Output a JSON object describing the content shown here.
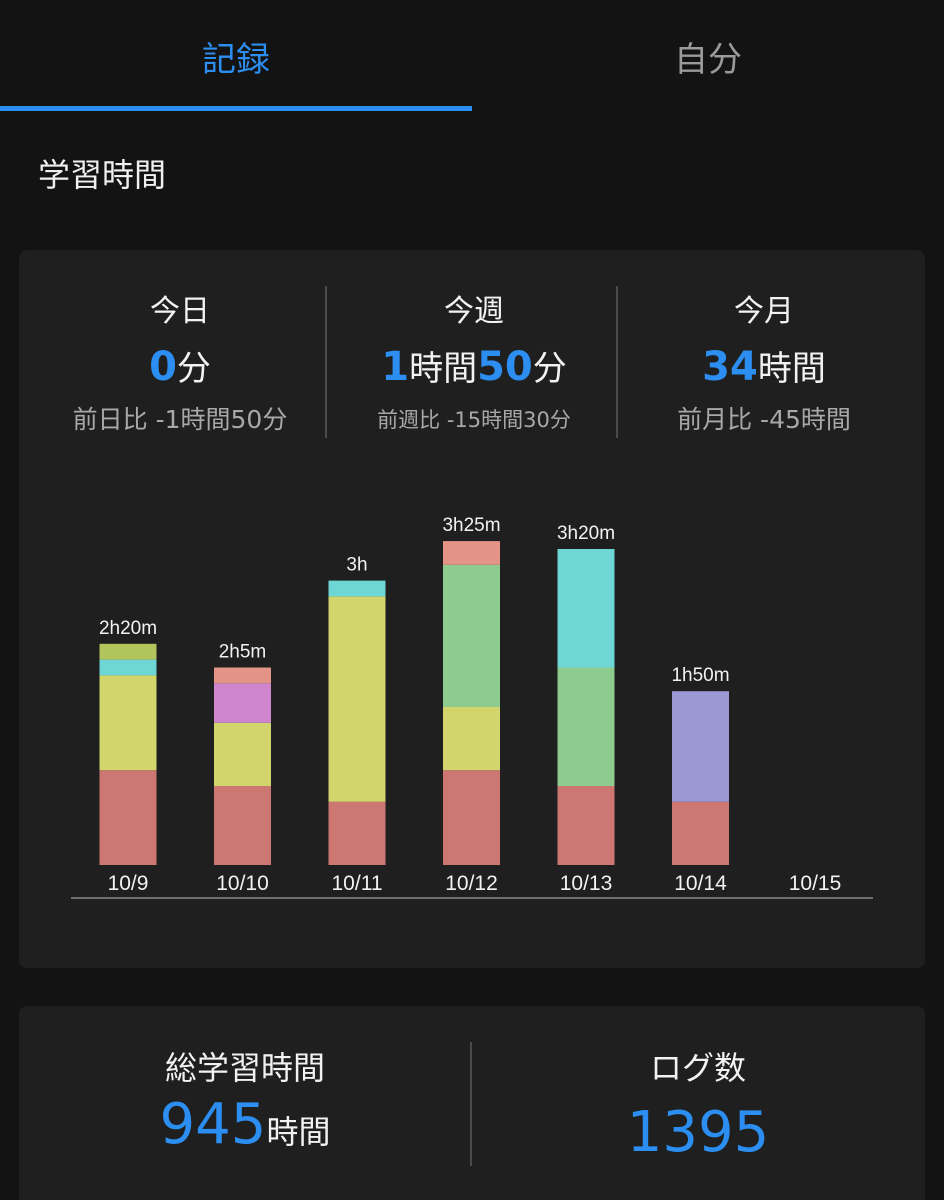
{
  "tabs": [
    {
      "label": "記録",
      "active": true
    },
    {
      "label": "自分",
      "active": false
    }
  ],
  "section_title": "学習時間",
  "stats": {
    "today": {
      "label": "今日",
      "value_parts": [
        "0",
        "分"
      ],
      "comparison": "前日比 -1時間50分"
    },
    "week": {
      "label": "今週",
      "value_parts": [
        "1",
        "時間",
        "50",
        "分"
      ],
      "comparison": "前週比 -15時間30分"
    },
    "month": {
      "label": "今月",
      "value_parts": [
        "34",
        "時間"
      ],
      "comparison": "前月比 -45時間"
    }
  },
  "colors": {
    "accent": "#2b8ef0",
    "red": "#cd7773",
    "yellow": "#d2d46c",
    "cyan": "#6fd6d6",
    "olive": "#b2c45c",
    "salmon": "#e39487",
    "purple": "#cf86cf",
    "green": "#8ecb8e",
    "lavender": "#9c98d6"
  },
  "chart_data": {
    "type": "bar",
    "stacked": true,
    "categories": [
      "10/9",
      "10/10",
      "10/11",
      "10/12",
      "10/13",
      "10/14",
      "10/15"
    ],
    "totals_label": [
      "2h20m",
      "2h5m",
      "3h",
      "3h25m",
      "3h20m",
      "1h50m",
      ""
    ],
    "stacks": [
      [
        {
          "color": "red",
          "minutes": 60
        },
        {
          "color": "yellow",
          "minutes": 60
        },
        {
          "color": "cyan",
          "minutes": 10
        },
        {
          "color": "olive",
          "minutes": 10
        }
      ],
      [
        {
          "color": "red",
          "minutes": 50
        },
        {
          "color": "yellow",
          "minutes": 40
        },
        {
          "color": "purple",
          "minutes": 25
        },
        {
          "color": "salmon",
          "minutes": 10
        }
      ],
      [
        {
          "color": "red",
          "minutes": 40
        },
        {
          "color": "yellow",
          "minutes": 130
        },
        {
          "color": "cyan",
          "minutes": 10
        }
      ],
      [
        {
          "color": "red",
          "minutes": 60
        },
        {
          "color": "yellow",
          "minutes": 40
        },
        {
          "color": "green",
          "minutes": 90
        },
        {
          "color": "salmon",
          "minutes": 15
        }
      ],
      [
        {
          "color": "red",
          "minutes": 50
        },
        {
          "color": "green",
          "minutes": 75
        },
        {
          "color": "cyan",
          "minutes": 75
        }
      ],
      [
        {
          "color": "red",
          "minutes": 40
        },
        {
          "color": "lavender",
          "minutes": 70
        }
      ],
      []
    ],
    "grid": false
  },
  "totals": {
    "total_time": {
      "label": "総学習時間",
      "value": "945",
      "unit": "時間"
    },
    "logs": {
      "label": "ログ数",
      "value": "1395"
    }
  }
}
